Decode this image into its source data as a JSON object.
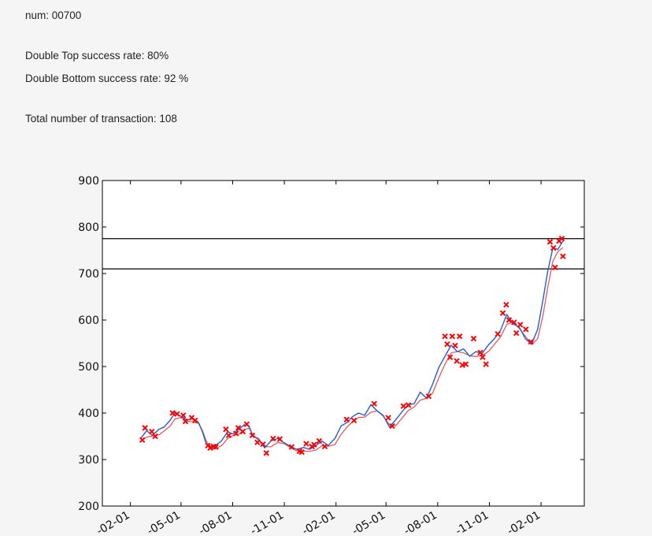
{
  "info": {
    "num_label": "num: 00700",
    "double_top": "Double Top success rate: 80%",
    "double_bottom": "Double Bottom success rate: 92 %",
    "total": "Total number of transaction: 108"
  },
  "colors": {
    "price_line": "#1f5fd6",
    "ma_line": "#e04848",
    "marker": "#ff0000",
    "hline": "#000000"
  },
  "chart_data": {
    "type": "line",
    "title": "",
    "xlabel": "",
    "ylabel": "",
    "ylim": [
      200,
      900
    ],
    "xlim": [
      "2015-12-13",
      "2018-04-19"
    ],
    "y_ticks": [
      200,
      300,
      400,
      500,
      600,
      700,
      800,
      900
    ],
    "x_ticks": [
      "2016-02-01",
      "2016-05-01",
      "2016-08-01",
      "2016-11-01",
      "2017-02-01",
      "2017-05-01",
      "2017-08-01",
      "2017-11-01",
      "2018-02-01"
    ],
    "x_tick_labels": [
      "-02-01",
      "-05-01",
      "-08-01",
      "-11-01",
      "-02-01",
      "-05-01",
      "-08-01",
      "-11-01",
      "-02-01"
    ],
    "horizontal_lines": [
      775,
      710
    ],
    "grid": false,
    "series": [
      {
        "points": [
          [
            "2016-02-19",
            345
          ],
          [
            "2016-03-01",
            362
          ],
          [
            "2016-03-11",
            352
          ],
          [
            "2016-03-23",
            365
          ],
          [
            "2016-04-01",
            370
          ],
          [
            "2016-04-12",
            385
          ],
          [
            "2016-04-20",
            400
          ],
          [
            "2016-05-01",
            393
          ],
          [
            "2016-05-12",
            385
          ],
          [
            "2016-05-23",
            388
          ],
          [
            "2016-06-01",
            380
          ],
          [
            "2016-06-08",
            360
          ],
          [
            "2016-06-15",
            333
          ],
          [
            "2016-06-24",
            328
          ],
          [
            "2016-07-01",
            330
          ],
          [
            "2016-07-12",
            340
          ],
          [
            "2016-07-23",
            360
          ],
          [
            "2016-08-01",
            355
          ],
          [
            "2016-08-12",
            365
          ],
          [
            "2016-08-22",
            375
          ],
          [
            "2016-08-30",
            372
          ],
          [
            "2016-09-06",
            350
          ],
          [
            "2016-09-16",
            345
          ],
          [
            "2016-09-27",
            325
          ],
          [
            "2016-10-08",
            340
          ],
          [
            "2016-10-20",
            345
          ],
          [
            "2016-11-01",
            336
          ],
          [
            "2016-11-12",
            328
          ],
          [
            "2016-11-23",
            322
          ],
          [
            "2016-12-05",
            326
          ],
          [
            "2016-12-16",
            322
          ],
          [
            "2016-12-27",
            330
          ],
          [
            "2017-01-07",
            340
          ],
          [
            "2017-01-18",
            330
          ],
          [
            "2017-01-30",
            345
          ],
          [
            "2017-02-10",
            372
          ],
          [
            "2017-02-21",
            380
          ],
          [
            "2017-03-02",
            392
          ],
          [
            "2017-03-13",
            400
          ],
          [
            "2017-03-24",
            395
          ],
          [
            "2017-04-04",
            418
          ],
          [
            "2017-04-15",
            405
          ],
          [
            "2017-04-26",
            395
          ],
          [
            "2017-05-07",
            370
          ],
          [
            "2017-05-18",
            385
          ],
          [
            "2017-05-29",
            402
          ],
          [
            "2017-06-09",
            418
          ],
          [
            "2017-06-20",
            420
          ],
          [
            "2017-07-01",
            445
          ],
          [
            "2017-07-12",
            432
          ],
          [
            "2017-07-23",
            462
          ],
          [
            "2017-08-03",
            498
          ],
          [
            "2017-08-14",
            522
          ],
          [
            "2017-08-25",
            546
          ],
          [
            "2017-09-05",
            532
          ],
          [
            "2017-09-16",
            538
          ],
          [
            "2017-09-27",
            522
          ],
          [
            "2017-10-08",
            532
          ],
          [
            "2017-10-19",
            528
          ],
          [
            "2017-10-30",
            546
          ],
          [
            "2017-11-10",
            560
          ],
          [
            "2017-11-21",
            578
          ],
          [
            "2017-12-02",
            612
          ],
          [
            "2017-12-13",
            592
          ],
          [
            "2017-12-24",
            585
          ],
          [
            "2018-01-04",
            560
          ],
          [
            "2018-01-15",
            548
          ],
          [
            "2018-01-26",
            580
          ],
          [
            "2018-02-04",
            640
          ],
          [
            "2018-02-13",
            705
          ],
          [
            "2018-02-22",
            755
          ],
          [
            "2018-03-03",
            752
          ],
          [
            "2018-03-12",
            770
          ]
        ]
      }
    ],
    "markers": [
      [
        "2016-02-22",
        342
      ],
      [
        "2016-02-27",
        368
      ],
      [
        "2016-03-10",
        360
      ],
      [
        "2016-03-16",
        350
      ],
      [
        "2016-04-16",
        400
      ],
      [
        "2016-04-24",
        398
      ],
      [
        "2016-05-05",
        395
      ],
      [
        "2016-05-09",
        382
      ],
      [
        "2016-05-20",
        390
      ],
      [
        "2016-05-26",
        384
      ],
      [
        "2016-06-18",
        330
      ],
      [
        "2016-06-22",
        325
      ],
      [
        "2016-06-28",
        328
      ],
      [
        "2016-07-02",
        327
      ],
      [
        "2016-07-20",
        365
      ],
      [
        "2016-07-25",
        352
      ],
      [
        "2016-08-07",
        356
      ],
      [
        "2016-08-11",
        368
      ],
      [
        "2016-08-19",
        360
      ],
      [
        "2016-08-26",
        376
      ],
      [
        "2016-09-05",
        352
      ],
      [
        "2016-09-14",
        337
      ],
      [
        "2016-09-24",
        333
      ],
      [
        "2016-09-30",
        314
      ],
      [
        "2016-10-12",
        345
      ],
      [
        "2016-10-24",
        344
      ],
      [
        "2016-11-14",
        327
      ],
      [
        "2016-11-28",
        318
      ],
      [
        "2016-12-02",
        316
      ],
      [
        "2016-12-10",
        334
      ],
      [
        "2016-12-20",
        328
      ],
      [
        "2016-12-24",
        332
      ],
      [
        "2017-01-02",
        340
      ],
      [
        "2017-01-12",
        328
      ],
      [
        "2017-02-20",
        386
      ],
      [
        "2017-03-05",
        384
      ],
      [
        "2017-04-10",
        420
      ],
      [
        "2017-05-05",
        390
      ],
      [
        "2017-05-12",
        372
      ],
      [
        "2017-06-01",
        415
      ],
      [
        "2017-06-10",
        417
      ],
      [
        "2017-07-16",
        436
      ],
      [
        "2017-08-14",
        565
      ],
      [
        "2017-08-18",
        548
      ],
      [
        "2017-08-23",
        520
      ],
      [
        "2017-08-27",
        565
      ],
      [
        "2017-09-01",
        545
      ],
      [
        "2017-09-04",
        512
      ],
      [
        "2017-09-09",
        565
      ],
      [
        "2017-09-14",
        503
      ],
      [
        "2017-09-20",
        505
      ],
      [
        "2017-10-04",
        560
      ],
      [
        "2017-10-16",
        530
      ],
      [
        "2017-10-20",
        520
      ],
      [
        "2017-10-26",
        505
      ],
      [
        "2017-11-16",
        570
      ],
      [
        "2017-11-25",
        615
      ],
      [
        "2017-12-01",
        633
      ],
      [
        "2017-12-06",
        600
      ],
      [
        "2017-12-15",
        595
      ],
      [
        "2017-12-19",
        572
      ],
      [
        "2017-12-26",
        590
      ],
      [
        "2018-01-05",
        580
      ],
      [
        "2018-01-14",
        553
      ],
      [
        "2018-02-17",
        768
      ],
      [
        "2018-02-23",
        755
      ],
      [
        "2018-02-26",
        713
      ],
      [
        "2018-03-05",
        770
      ],
      [
        "2018-03-10",
        775
      ],
      [
        "2018-03-12",
        737
      ]
    ]
  }
}
